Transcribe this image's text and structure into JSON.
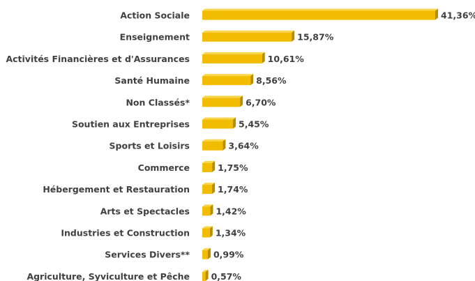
{
  "chart_data": {
    "type": "bar",
    "orientation": "horizontal",
    "color": "#f2bc00",
    "categories": [
      "Action Sociale",
      "Enseignement",
      "Activités Financières et d'Assurances",
      "Santé Humaine",
      "Non Classés*",
      "Soutien aux Entreprises",
      "Sports et Loisirs",
      "Commerce",
      "Hébergement et Restauration",
      "Arts et Spectacles",
      "Industries et Construction",
      "Services Divers**",
      "Agriculture, Syviculture et Pêche"
    ],
    "values": [
      41.36,
      15.87,
      10.61,
      8.56,
      6.7,
      5.45,
      3.64,
      1.75,
      1.74,
      1.42,
      1.34,
      0.99,
      0.57
    ],
    "value_labels": [
      "41,36%",
      "15,87%",
      "10,61%",
      "8,56%",
      "6,70%",
      "5,45%",
      "3,64%",
      "1,75%",
      "1,74%",
      "1,42%",
      "1,34%",
      "0,99%",
      "0,57%"
    ]
  }
}
